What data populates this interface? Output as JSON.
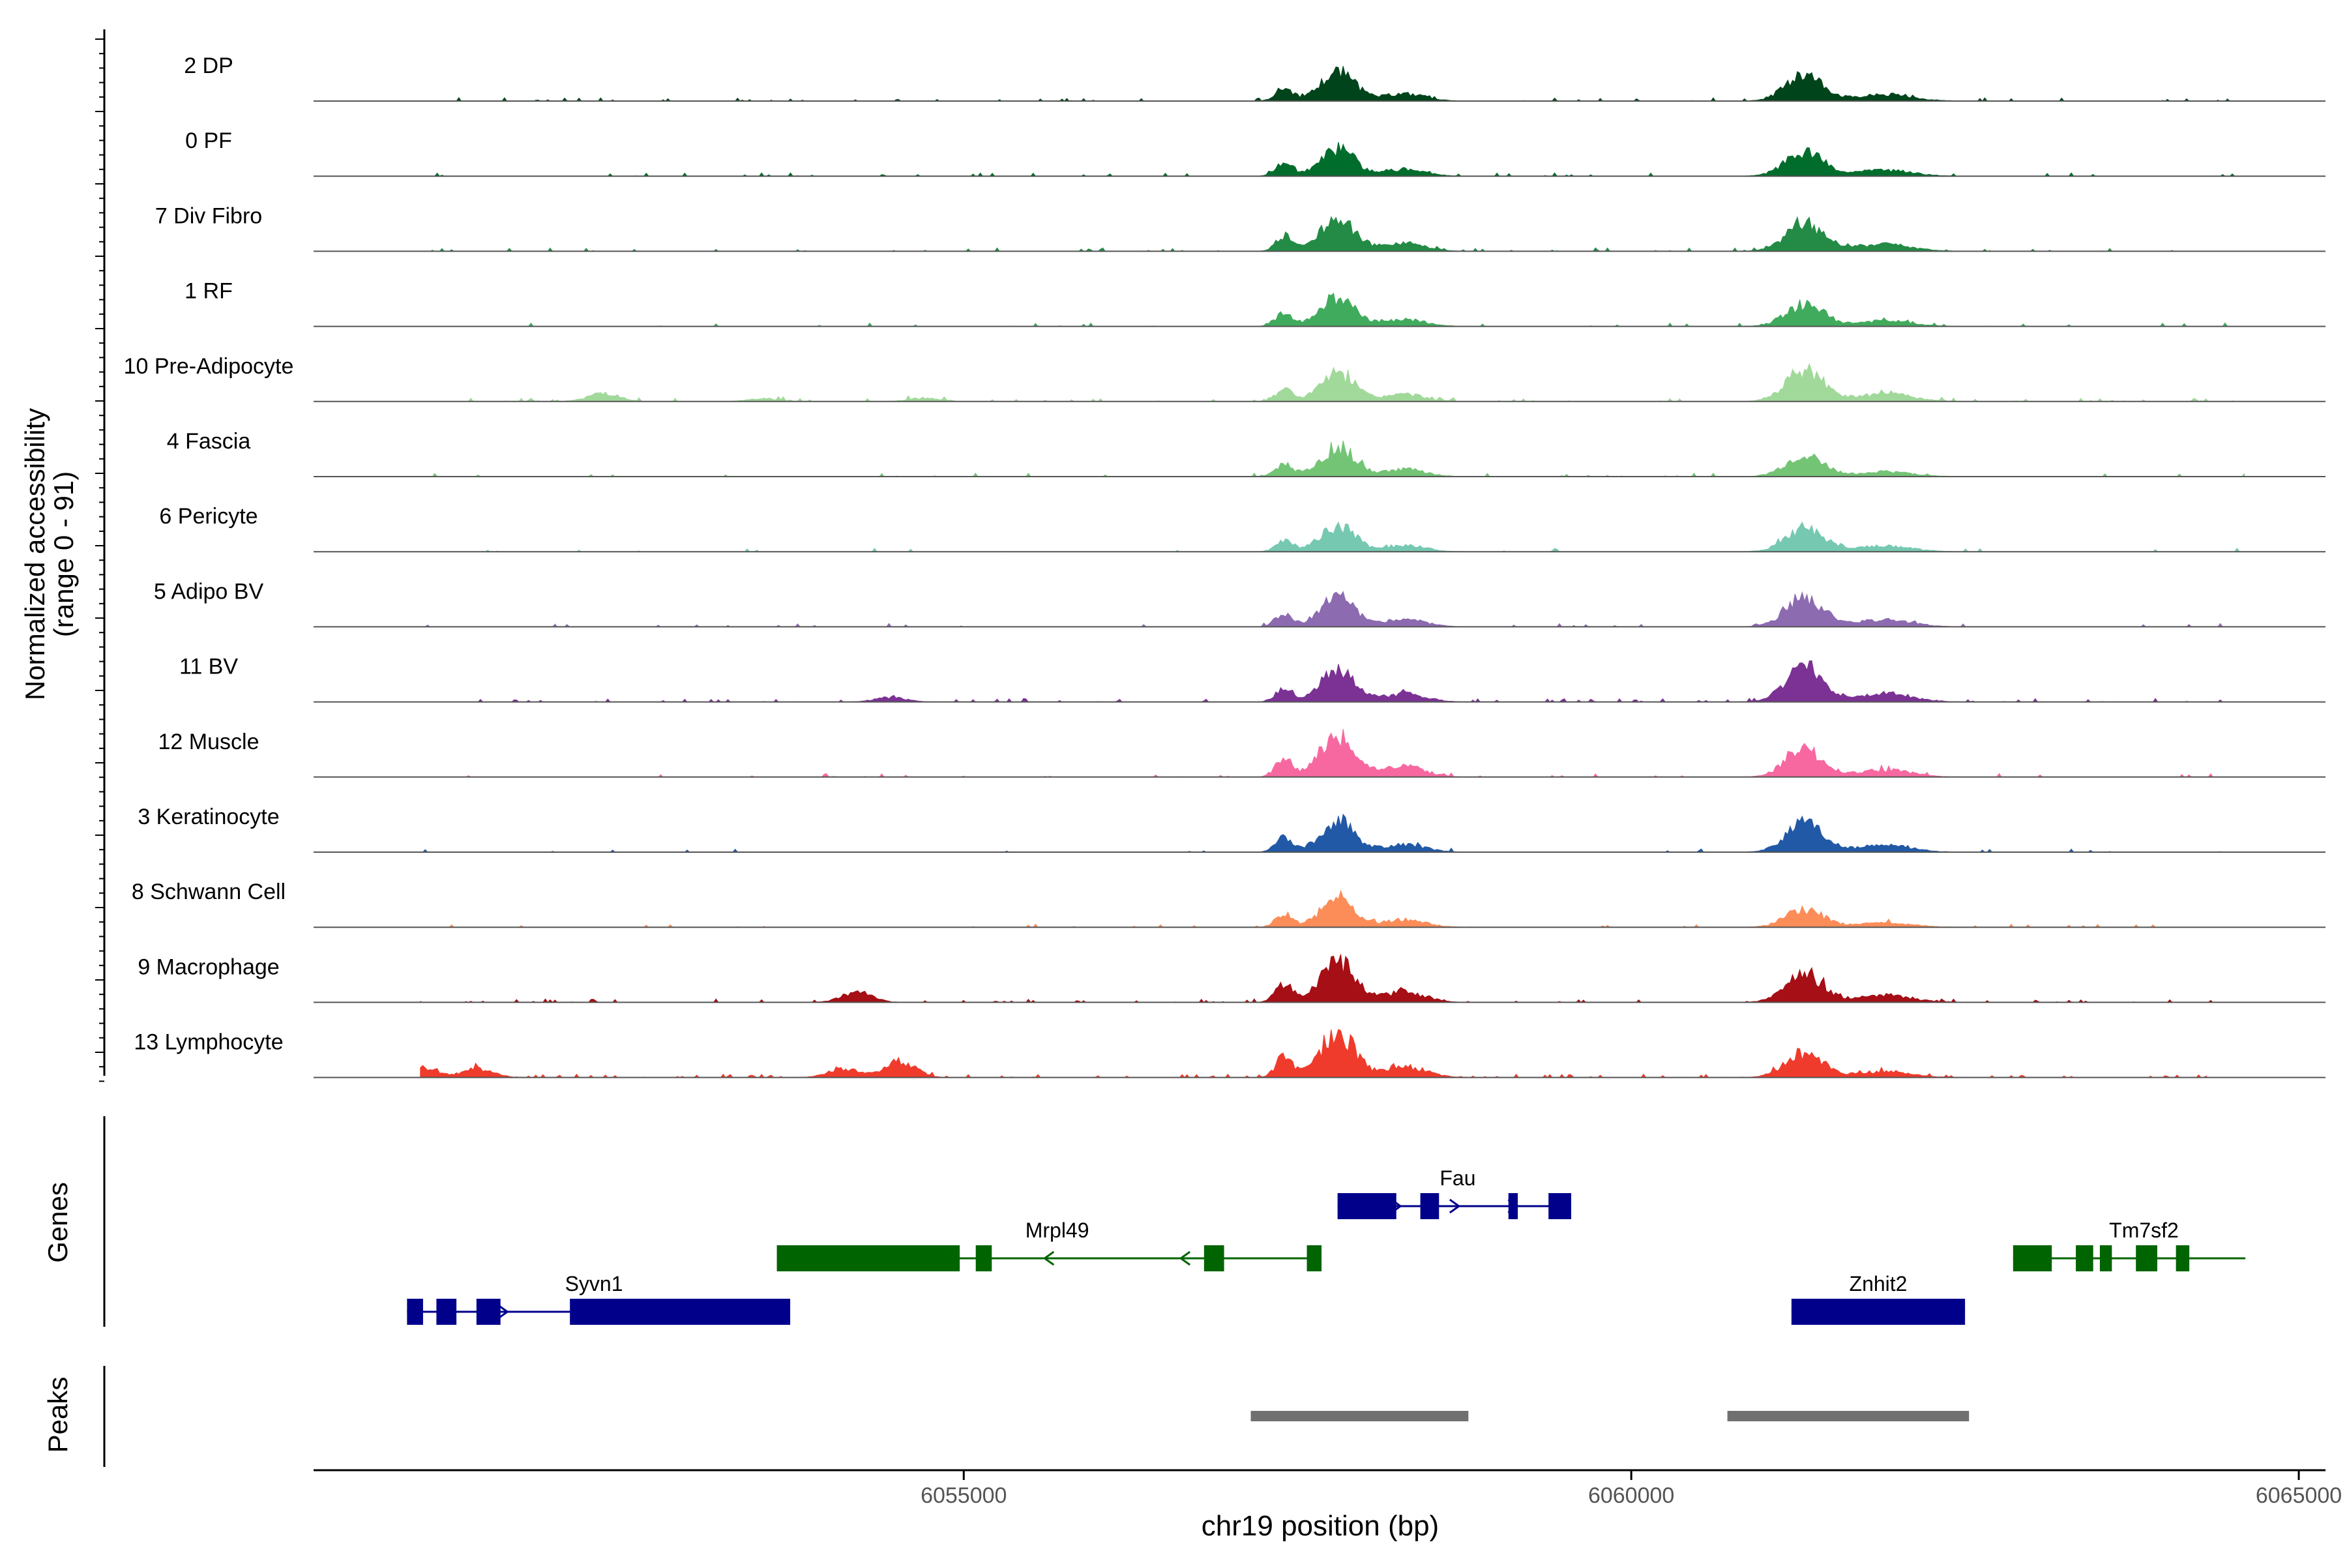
{
  "chart_data": {
    "type": "area",
    "y_axis_label": "Normalized accessibility",
    "y_axis_range_label": "(range 0 - 91)",
    "y_range": [
      0,
      91
    ],
    "x_axis_label": "chr19 position (bp)",
    "x_range": [
      6050130,
      6065200
    ],
    "x_ticks": [
      6055000,
      6060000,
      6065000
    ],
    "x_tick_labels": [
      "6055000",
      "6060000",
      "6065000"
    ],
    "tracks": [
      {
        "name": "2 DP",
        "color": "#00441b",
        "peakA": 1.0,
        "peakB": 0.9,
        "noise": 0.08,
        "extra": []
      },
      {
        "name": "0 PF",
        "color": "#006d2c",
        "peakA": 0.95,
        "peakB": 0.85,
        "noise": 0.06,
        "extra": []
      },
      {
        "name": "7 Div Fibro",
        "color": "#238b45",
        "peakA": 1.15,
        "peakB": 0.95,
        "noise": 0.1,
        "extra": []
      },
      {
        "name": "1 RF",
        "color": "#41ab5d",
        "peakA": 1.0,
        "peakB": 0.75,
        "noise": 0.05,
        "extra": []
      },
      {
        "name": "10 Pre-Adipocyte",
        "color": "#a1d99b",
        "peakA": 0.95,
        "peakB": 1.05,
        "noise": 0.12,
        "extra": [
          [
            6052300,
            0.28
          ],
          [
            6053500,
            0.1
          ],
          [
            6054700,
            0.12
          ]
        ]
      },
      {
        "name": "4 Fascia",
        "color": "#74c476",
        "peakA": 1.0,
        "peakB": 0.7,
        "noise": 0.05,
        "extra": []
      },
      {
        "name": "6 Pericyte",
        "color": "#76c8b1",
        "peakA": 0.9,
        "peakB": 0.8,
        "noise": 0.04,
        "extra": []
      },
      {
        "name": "5 Adipo BV",
        "color": "#8c6bb1",
        "peakA": 1.05,
        "peakB": 1.0,
        "noise": 0.06,
        "extra": []
      },
      {
        "name": "11 BV",
        "color": "#7b3294",
        "peakA": 1.1,
        "peakB": 1.15,
        "noise": 0.1,
        "extra": [
          [
            6054450,
            0.15
          ]
        ]
      },
      {
        "name": "12 Muscle",
        "color": "#f768a1",
        "peakA": 1.45,
        "peakB": 0.95,
        "noise": 0.07,
        "extra": []
      },
      {
        "name": "3 Keratinocyte",
        "color": "#2259a6",
        "peakA": 1.05,
        "peakB": 0.95,
        "noise": 0.05,
        "extra": []
      },
      {
        "name": "8 Schwann Cell",
        "color": "#fc8d59",
        "peakA": 1.0,
        "peakB": 0.6,
        "noise": 0.06,
        "extra": []
      },
      {
        "name": "9 Macrophage",
        "color": "#a50f15",
        "peakA": 1.4,
        "peakB": 0.95,
        "noise": 0.1,
        "extra": [
          [
            6054200,
            0.35
          ]
        ]
      },
      {
        "name": "13 Lymphocyte",
        "color": "#ef3b2c",
        "peakA": 1.55,
        "peakB": 0.85,
        "noise": 0.14,
        "extra": [
          [
            6050920,
            0.4
          ],
          [
            6051350,
            0.3
          ],
          [
            6054100,
            0.3
          ],
          [
            6054520,
            0.55
          ]
        ]
      }
    ],
    "genes_label": "Genes",
    "genes": [
      {
        "name": "Syvn1",
        "start": 6050830,
        "end": 6053700,
        "strand": "+",
        "color": "#00008b",
        "row": 2,
        "label_pos": 6052230,
        "exons": [
          [
            6050830,
            6050950
          ],
          [
            6051050,
            6051200
          ],
          [
            6051350,
            6051530
          ],
          [
            6052050,
            6053700
          ]
        ]
      },
      {
        "name": "Mrpl49",
        "start": 6053600,
        "end": 6057680,
        "strand": "-",
        "color": "#006400",
        "row": 1,
        "label_pos": 6055700,
        "exons": [
          [
            6053600,
            6054970
          ],
          [
            6055090,
            6055210
          ],
          [
            6056800,
            6056950
          ],
          [
            6057570,
            6057680
          ]
        ]
      },
      {
        "name": "Fau",
        "start": 6057800,
        "end": 6059550,
        "strand": "+",
        "color": "#00008b",
        "row": 0,
        "label_pos": 6058700,
        "exons": [
          [
            6057800,
            6058240
          ],
          [
            6058420,
            6058560
          ],
          [
            6059080,
            6059150
          ],
          [
            6059380,
            6059550
          ]
        ]
      },
      {
        "name": "Znhit2",
        "start": 6061200,
        "end": 6062500,
        "strand": "+",
        "color": "#00008b",
        "row": 2,
        "label_pos": 6061850,
        "exons": [
          [
            6061200,
            6062500
          ]
        ]
      },
      {
        "name": "Tm7sf2",
        "start": 6062860,
        "end": 6064600,
        "strand": "",
        "color": "#006400",
        "row": 1,
        "label_pos": 6063840,
        "exons": [
          [
            6062860,
            6063150
          ],
          [
            6063330,
            6063460
          ],
          [
            6063510,
            6063600
          ],
          [
            6063780,
            6063940
          ],
          [
            6064080,
            6064180
          ]
        ]
      }
    ],
    "peaks_label": "Peaks",
    "peaks": [
      [
        6057150,
        6058780
      ],
      [
        6060720,
        6062530
      ]
    ]
  }
}
